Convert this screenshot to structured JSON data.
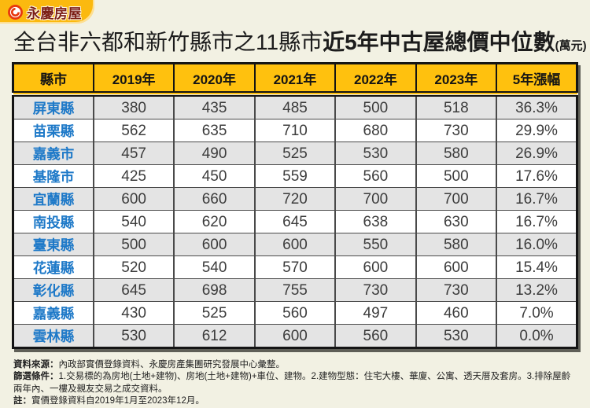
{
  "logo": {
    "brand": "永慶房屋",
    "icon": "yungching-swirl-icon",
    "banner_color": "#FBB90F",
    "text_color": "#7C1F15",
    "icon_color": "#E8380D"
  },
  "title": {
    "prefix": "全台非六都和新竹縣市之11縣市",
    "highlight": "近5年中古屋總價中位數",
    "unit": "(萬元)"
  },
  "table": {
    "headers": [
      "縣市",
      "2019年",
      "2020年",
      "2021年",
      "2022年",
      "2023年",
      "5年漲幅"
    ],
    "rows": [
      [
        "屏東縣",
        "380",
        "435",
        "485",
        "500",
        "518",
        "36.3%"
      ],
      [
        "苗栗縣",
        "562",
        "635",
        "710",
        "680",
        "730",
        "29.9%"
      ],
      [
        "嘉義市",
        "457",
        "490",
        "525",
        "530",
        "580",
        "26.9%"
      ],
      [
        "基隆市",
        "425",
        "450",
        "559",
        "560",
        "500",
        "17.6%"
      ],
      [
        "宜蘭縣",
        "600",
        "660",
        "720",
        "700",
        "700",
        "16.7%"
      ],
      [
        "南投縣",
        "540",
        "620",
        "645",
        "638",
        "630",
        "16.7%"
      ],
      [
        "臺東縣",
        "500",
        "600",
        "600",
        "550",
        "580",
        "16.0%"
      ],
      [
        "花蓮縣",
        "520",
        "540",
        "570",
        "600",
        "600",
        "15.4%"
      ],
      [
        "彰化縣",
        "645",
        "698",
        "755",
        "730",
        "730",
        "13.2%"
      ],
      [
        "嘉義縣",
        "430",
        "525",
        "560",
        "497",
        "460",
        "7.0%"
      ],
      [
        "雲林縣",
        "530",
        "612",
        "600",
        "560",
        "530",
        "0.0%"
      ]
    ],
    "colors": {
      "header_bg": "#FFC10E",
      "county_text": "#1E79C8",
      "alt_row_bg": "#E4E4E4",
      "border": "#141414"
    }
  },
  "footer": {
    "lines": [
      {
        "label": "資料來源：",
        "text": "內政部實價登錄資料、永慶房產集團研究發展中心彙整。"
      },
      {
        "label": "篩選條件：",
        "text": "1.交易標的為房地(土地+建物)、房地(土地+建物)+車位、建物。2.建物型態：住宅大樓、華廈、公寓、透天厝及套房。3.排除屋齡兩年內、一樓及親友交易之成交資料。"
      },
      {
        "label": "註：",
        "text": "實價登錄資料自2019年1月至2023年12月。"
      }
    ]
  },
  "chart_data": {
    "type": "table",
    "title": "全台非六都和新竹縣市之11縣市近5年中古屋總價中位數(萬元)",
    "unit": "萬元",
    "columns": [
      "縣市",
      "2019年",
      "2020年",
      "2021年",
      "2022年",
      "2023年",
      "5年漲幅"
    ],
    "x": [
      "2019",
      "2020",
      "2021",
      "2022",
      "2023"
    ],
    "series": [
      {
        "name": "屏東縣",
        "values": [
          380,
          435,
          485,
          500,
          518
        ],
        "change_5yr": "36.3%"
      },
      {
        "name": "苗栗縣",
        "values": [
          562,
          635,
          710,
          680,
          730
        ],
        "change_5yr": "29.9%"
      },
      {
        "name": "嘉義市",
        "values": [
          457,
          490,
          525,
          530,
          580
        ],
        "change_5yr": "26.9%"
      },
      {
        "name": "基隆市",
        "values": [
          425,
          450,
          559,
          560,
          500
        ],
        "change_5yr": "17.6%"
      },
      {
        "name": "宜蘭縣",
        "values": [
          600,
          660,
          720,
          700,
          700
        ],
        "change_5yr": "16.7%"
      },
      {
        "name": "南投縣",
        "values": [
          540,
          620,
          645,
          638,
          630
        ],
        "change_5yr": "16.7%"
      },
      {
        "name": "臺東縣",
        "values": [
          500,
          600,
          600,
          550,
          580
        ],
        "change_5yr": "16.0%"
      },
      {
        "name": "花蓮縣",
        "values": [
          520,
          540,
          570,
          600,
          600
        ],
        "change_5yr": "15.4%"
      },
      {
        "name": "彰化縣",
        "values": [
          645,
          698,
          755,
          730,
          730
        ],
        "change_5yr": "13.2%"
      },
      {
        "name": "嘉義縣",
        "values": [
          430,
          525,
          560,
          497,
          460
        ],
        "change_5yr": "7.0%"
      },
      {
        "name": "雲林縣",
        "values": [
          530,
          612,
          600,
          560,
          530
        ],
        "change_5yr": "0.0%"
      }
    ]
  }
}
